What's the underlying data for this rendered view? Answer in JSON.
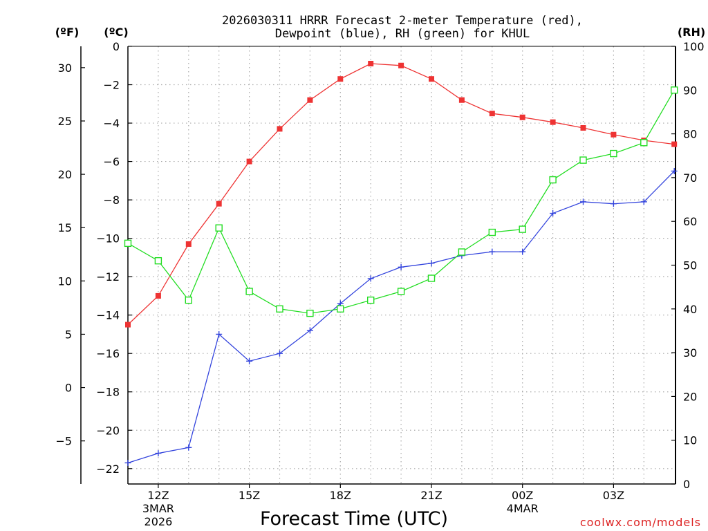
{
  "chart_data": {
    "type": "line",
    "title": "2026030311 HRRR Forecast 2-meter Temperature (red),",
    "title_line2": "Dewpoint (blue), RH (green) for KHUL",
    "xlabel": "Forecast Time (UTC)",
    "watermark": "coolwx.com/models",
    "left_axis_f_label": "(ºF)",
    "left_axis_c_label": "(ºC)",
    "right_axis_label": "(RH)",
    "x_hours": [
      0,
      1,
      2,
      3,
      4,
      5,
      6,
      7,
      8,
      9,
      10,
      11,
      12,
      13,
      14,
      15,
      16,
      17,
      18
    ],
    "x_ticks": [
      {
        "hour": 1,
        "label": "12Z",
        "sub1": "3MAR",
        "sub2": "2026"
      },
      {
        "hour": 4,
        "label": "15Z",
        "sub1": "",
        "sub2": ""
      },
      {
        "hour": 7,
        "label": "18Z",
        "sub1": "",
        "sub2": ""
      },
      {
        "hour": 10,
        "label": "21Z",
        "sub1": "",
        "sub2": ""
      },
      {
        "hour": 13,
        "label": "00Z",
        "sub1": "4MAR",
        "sub2": ""
      },
      {
        "hour": 16,
        "label": "03Z",
        "sub1": "",
        "sub2": ""
      }
    ],
    "celsius_ticks": [
      "0",
      "−2",
      "−4",
      "−6",
      "−8",
      "−10",
      "−12",
      "−14",
      "−16",
      "−18",
      "−20",
      "−22"
    ],
    "celsius_tick_values": [
      0,
      -2,
      -4,
      -6,
      -8,
      -10,
      -12,
      -14,
      -16,
      -18,
      -20,
      -22
    ],
    "fahrenheit_ticks": [
      "30",
      "25",
      "20",
      "15",
      "10",
      "5",
      "0",
      "−5"
    ],
    "fahrenheit_tick_values": [
      30,
      25,
      20,
      15,
      10,
      5,
      0,
      -5
    ],
    "rh_ticks": [
      "100",
      "90",
      "80",
      "70",
      "60",
      "50",
      "40",
      "30",
      "20",
      "10",
      "0"
    ],
    "rh_tick_values": [
      100,
      90,
      80,
      70,
      60,
      50,
      40,
      30,
      20,
      10,
      0
    ],
    "celsius_range": [
      0,
      -22.8
    ],
    "rh_range": [
      0,
      100
    ],
    "series": [
      {
        "name": "2-meter Temperature",
        "axis": "celsius",
        "color": "#ee3333",
        "marker": "filled-square",
        "values": [
          -14.5,
          -13.0,
          -10.3,
          -8.2,
          -6.0,
          -4.3,
          -2.8,
          -1.7,
          -0.9,
          -1.0,
          -1.7,
          -2.8,
          -3.5,
          -3.7,
          -3.95,
          -4.25,
          -4.6,
          -4.9,
          -5.1
        ]
      },
      {
        "name": "Dewpoint",
        "axis": "celsius",
        "color": "#3344dd",
        "marker": "plus",
        "values": [
          -21.7,
          -21.2,
          -20.9,
          -15.0,
          -16.4,
          -16.0,
          -14.8,
          -13.4,
          -12.1,
          -11.5,
          -11.3,
          -10.9,
          -10.7,
          -10.7,
          -8.7,
          -8.1,
          -8.2,
          -8.1,
          -6.5
        ]
      },
      {
        "name": "RH",
        "axis": "rh",
        "color": "#22dd22",
        "marker": "open-square",
        "values": [
          55,
          51,
          42,
          58.5,
          44,
          40,
          39,
          40,
          42,
          44,
          47,
          53,
          57.5,
          58.2,
          69.5,
          74,
          75.5,
          78,
          90
        ]
      }
    ]
  }
}
